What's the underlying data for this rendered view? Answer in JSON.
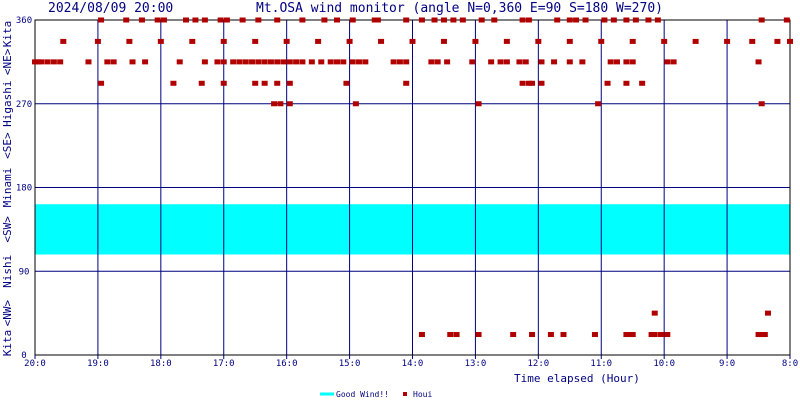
{
  "header": {
    "datetime": "2024/08/09 20:00",
    "title": "Mt.OSA wind monitor (angle N=0,360 E=90 S=180 W=270)"
  },
  "left_axis_labels": [
    "Kita",
    "<NW>",
    "Nishi",
    "<SW>",
    "Minami",
    "<SE>",
    "Higashi",
    "<NE>",
    "Kita"
  ],
  "colors": {
    "background": "#ffffff",
    "plot_border": "#000000",
    "grid": "#000080",
    "good_wind_band": "#00ffff",
    "houi_marker": "#b00000",
    "text": "#000080"
  },
  "chart_data": {
    "type": "scatter",
    "title": "Mt.OSA wind monitor (angle N=0,360 E=90 S=180 W=270)",
    "xlabel": "Time elapsed (Hour)",
    "ylabel": "",
    "xlim": [
      20,
      8
    ],
    "ylim": [
      0,
      360
    ],
    "x_ticks": [
      {
        "value": 20,
        "label": "20:0"
      },
      {
        "value": 19,
        "label": "19:0"
      },
      {
        "value": 18,
        "label": "18:0"
      },
      {
        "value": 17,
        "label": "17:0"
      },
      {
        "value": 16,
        "label": "16:0"
      },
      {
        "value": 15,
        "label": "15:0"
      },
      {
        "value": 14,
        "label": "14:0"
      },
      {
        "value": 13,
        "label": "13:0"
      },
      {
        "value": 12,
        "label": "12:0"
      },
      {
        "value": 11,
        "label": "11:0"
      },
      {
        "value": 10,
        "label": "10:0"
      },
      {
        "value": 9,
        "label": "9:0"
      },
      {
        "value": 8,
        "label": "8:0"
      }
    ],
    "y_ticks": [
      {
        "value": 0,
        "label": "0"
      },
      {
        "value": 90,
        "label": "90"
      },
      {
        "value": 180,
        "label": "180"
      },
      {
        "value": 270,
        "label": "270"
      },
      {
        "value": 360,
        "label": "360"
      }
    ],
    "grid": true,
    "legend_position": "bottom-center",
    "bands": [
      {
        "name": "Good Wind!!",
        "y_from": 108,
        "y_to": 162,
        "color": "#00ffff"
      }
    ],
    "series": [
      {
        "name": "Houi",
        "color": "#b00000",
        "points": [
          [
            20.0,
            315
          ],
          [
            19.95,
            315
          ],
          [
            19.9,
            315
          ],
          [
            19.8,
            315
          ],
          [
            19.7,
            315
          ],
          [
            19.6,
            315
          ],
          [
            19.15,
            315
          ],
          [
            18.85,
            315
          ],
          [
            18.75,
            315
          ],
          [
            18.45,
            315
          ],
          [
            18.25,
            315
          ],
          [
            17.7,
            315
          ],
          [
            17.3,
            315
          ],
          [
            17.1,
            315
          ],
          [
            17.0,
            315
          ],
          [
            16.85,
            315
          ],
          [
            16.75,
            315
          ],
          [
            16.65,
            315
          ],
          [
            16.55,
            315
          ],
          [
            16.45,
            315
          ],
          [
            16.35,
            315
          ],
          [
            16.25,
            315
          ],
          [
            16.15,
            315
          ],
          [
            16.05,
            315
          ],
          [
            15.95,
            315
          ],
          [
            15.85,
            315
          ],
          [
            15.75,
            315
          ],
          [
            15.6,
            315
          ],
          [
            15.45,
            315
          ],
          [
            15.3,
            315
          ],
          [
            15.2,
            315
          ],
          [
            15.1,
            315
          ],
          [
            14.95,
            315
          ],
          [
            14.85,
            315
          ],
          [
            14.75,
            315
          ],
          [
            14.3,
            315
          ],
          [
            14.2,
            315
          ],
          [
            14.1,
            315
          ],
          [
            13.7,
            315
          ],
          [
            13.6,
            315
          ],
          [
            13.45,
            315
          ],
          [
            13.05,
            315
          ],
          [
            12.75,
            315
          ],
          [
            12.6,
            315
          ],
          [
            12.5,
            315
          ],
          [
            12.3,
            315
          ],
          [
            12.2,
            315
          ],
          [
            11.95,
            315
          ],
          [
            11.75,
            315
          ],
          [
            11.5,
            315
          ],
          [
            11.3,
            315
          ],
          [
            10.85,
            315
          ],
          [
            10.75,
            315
          ],
          [
            10.6,
            315
          ],
          [
            10.5,
            315
          ],
          [
            9.95,
            315
          ],
          [
            9.85,
            315
          ],
          [
            8.5,
            315
          ],
          [
            19.55,
            337
          ],
          [
            19.0,
            337
          ],
          [
            18.5,
            337
          ],
          [
            18.0,
            337
          ],
          [
            17.5,
            337
          ],
          [
            17.0,
            337
          ],
          [
            16.5,
            337
          ],
          [
            16.0,
            337
          ],
          [
            15.5,
            337
          ],
          [
            15.0,
            337
          ],
          [
            14.5,
            337
          ],
          [
            14.0,
            337
          ],
          [
            13.5,
            337
          ],
          [
            13.0,
            337
          ],
          [
            12.5,
            337
          ],
          [
            12.0,
            337
          ],
          [
            11.5,
            337
          ],
          [
            11.0,
            337
          ],
          [
            10.5,
            337
          ],
          [
            10.0,
            337
          ],
          [
            9.5,
            337
          ],
          [
            9.0,
            337
          ],
          [
            8.6,
            337
          ],
          [
            8.2,
            337
          ],
          [
            8.0,
            337
          ],
          [
            18.95,
            360
          ],
          [
            18.55,
            360
          ],
          [
            18.3,
            360
          ],
          [
            18.05,
            360
          ],
          [
            17.95,
            360
          ],
          [
            17.6,
            360
          ],
          [
            17.45,
            360
          ],
          [
            17.3,
            360
          ],
          [
            17.05,
            360
          ],
          [
            16.95,
            360
          ],
          [
            16.7,
            360
          ],
          [
            16.45,
            360
          ],
          [
            16.15,
            360
          ],
          [
            15.75,
            360
          ],
          [
            15.4,
            360
          ],
          [
            15.2,
            360
          ],
          [
            14.95,
            360
          ],
          [
            14.6,
            360
          ],
          [
            14.55,
            360
          ],
          [
            14.1,
            360
          ],
          [
            13.85,
            360
          ],
          [
            13.65,
            360
          ],
          [
            13.5,
            360
          ],
          [
            13.35,
            360
          ],
          [
            13.2,
            360
          ],
          [
            12.9,
            360
          ],
          [
            12.7,
            360
          ],
          [
            12.25,
            360
          ],
          [
            12.15,
            360
          ],
          [
            11.7,
            360
          ],
          [
            11.5,
            360
          ],
          [
            11.4,
            360
          ],
          [
            11.25,
            360
          ],
          [
            10.95,
            360
          ],
          [
            10.8,
            360
          ],
          [
            10.6,
            360
          ],
          [
            10.45,
            360
          ],
          [
            10.25,
            360
          ],
          [
            10.1,
            360
          ],
          [
            8.45,
            360
          ],
          [
            8.05,
            360
          ],
          [
            18.95,
            292
          ],
          [
            17.8,
            292
          ],
          [
            17.35,
            292
          ],
          [
            17.0,
            292
          ],
          [
            16.5,
            292
          ],
          [
            16.35,
            292
          ],
          [
            16.15,
            292
          ],
          [
            15.95,
            292
          ],
          [
            15.05,
            292
          ],
          [
            14.1,
            292
          ],
          [
            12.25,
            292
          ],
          [
            12.15,
            292
          ],
          [
            12.1,
            292
          ],
          [
            11.95,
            292
          ],
          [
            10.9,
            292
          ],
          [
            10.6,
            292
          ],
          [
            10.35,
            292
          ],
          [
            16.2,
            270
          ],
          [
            16.1,
            270
          ],
          [
            15.95,
            270
          ],
          [
            14.9,
            270
          ],
          [
            12.95,
            270
          ],
          [
            11.05,
            270
          ],
          [
            8.45,
            270
          ],
          [
            13.85,
            22
          ],
          [
            13.4,
            22
          ],
          [
            13.3,
            22
          ],
          [
            12.95,
            22
          ],
          [
            12.4,
            22
          ],
          [
            12.1,
            22
          ],
          [
            11.8,
            22
          ],
          [
            11.6,
            22
          ],
          [
            11.1,
            22
          ],
          [
            10.6,
            22
          ],
          [
            10.55,
            22
          ],
          [
            10.5,
            22
          ],
          [
            10.2,
            22
          ],
          [
            10.15,
            22
          ],
          [
            10.05,
            22
          ],
          [
            9.95,
            22
          ],
          [
            8.5,
            22
          ],
          [
            8.45,
            22
          ],
          [
            8.4,
            22
          ],
          [
            10.15,
            45
          ],
          [
            8.35,
            45
          ]
        ]
      }
    ]
  }
}
